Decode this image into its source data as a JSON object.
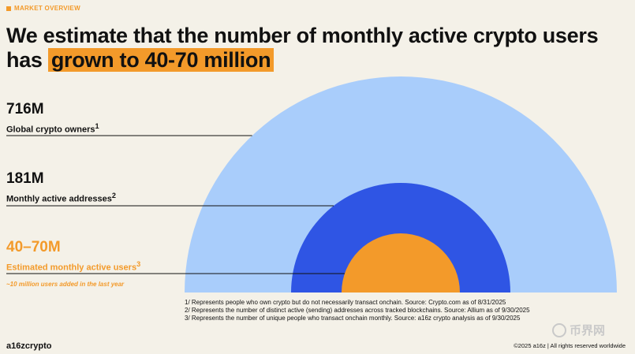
{
  "section_tag": "MARKET OVERVIEW",
  "headline": {
    "line1": "We estimate that the number of monthly active crypto users",
    "line2_prefix": "has ",
    "line2_highlight": "grown to 40-70 million"
  },
  "chart_data": {
    "type": "nested-semicircle",
    "units": "millions of users",
    "series": [
      {
        "value_label": "716M",
        "name": "Global crypto owners",
        "sup": "1",
        "value": 716,
        "color": "#a9cdfb"
      },
      {
        "value_label": "181M",
        "name": "Monthly active addresses",
        "sup": "2",
        "value": 181,
        "color": "#2f55e4"
      },
      {
        "value_label": "40–70M",
        "name": "Estimated monthly active users",
        "sup": "3",
        "value": [
          40,
          70
        ],
        "color": "#f39a2a"
      }
    ],
    "annotation": "~10 million users added in the last year"
  },
  "footnotes": [
    "1/ Represents people who own crypto but do not necessarily transact onchain. Source: Crypto.com as of 8/31/2025",
    "2/ Represents the number of distinct active (sending) addresses across tracked blockchains. Source: Allium as of 9/30/2025",
    "3/ Represents the number of unique people who transact onchain monthly. Source: a16z crypto analysis as of 9/30/2025"
  ],
  "brand": "a16zcrypto",
  "copyright": "©2025 a16z | All rights reserved worldwide",
  "watermark": "币界网",
  "colors": {
    "accent": "#f39a2a",
    "background": "#f4f1e8"
  }
}
